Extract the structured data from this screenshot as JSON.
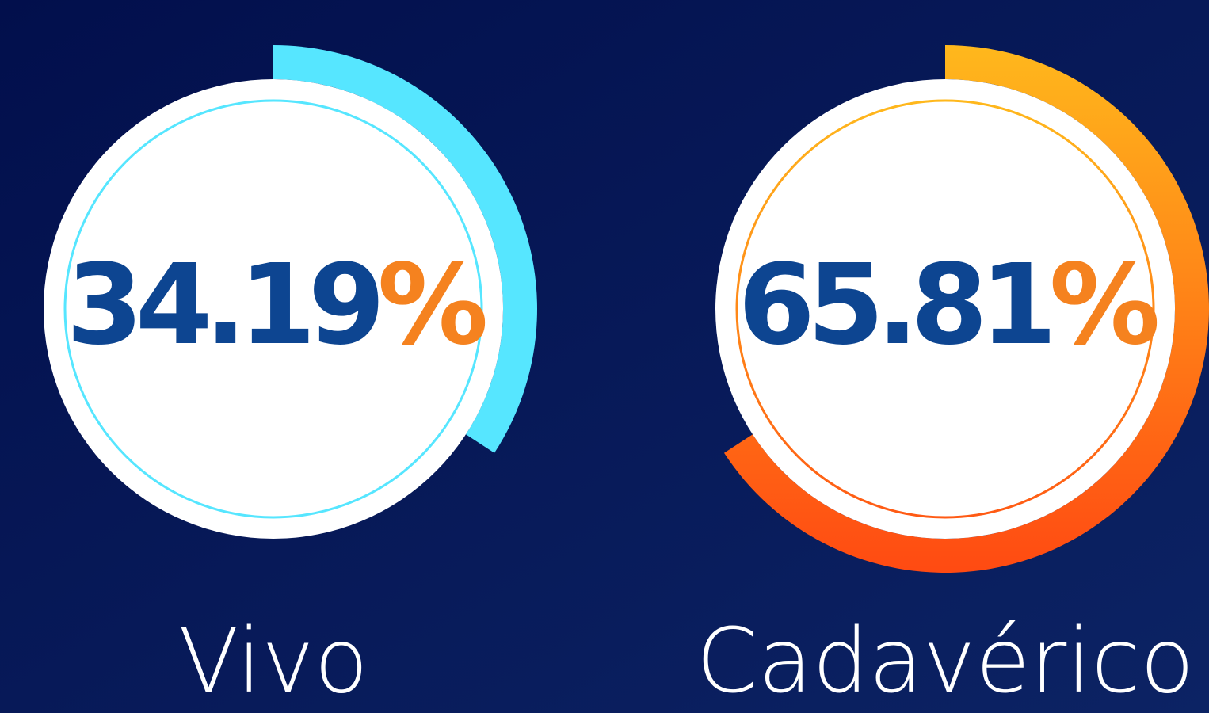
{
  "chart_data": [
    {
      "type": "gauge",
      "label": "Vivo",
      "value": 34.19,
      "unit": "%",
      "ylim": [
        0,
        100
      ],
      "color": "#56e6ff",
      "ring_color": "#56e6ff"
    },
    {
      "type": "gauge",
      "label": "Cadavérico",
      "value": 65.81,
      "unit": "%",
      "ylim": [
        0,
        100
      ],
      "color": [
        "#ffb81c",
        "#ff4a12"
      ],
      "ring_color": [
        "#ffb81c",
        "#ff5a14"
      ]
    }
  ]
}
